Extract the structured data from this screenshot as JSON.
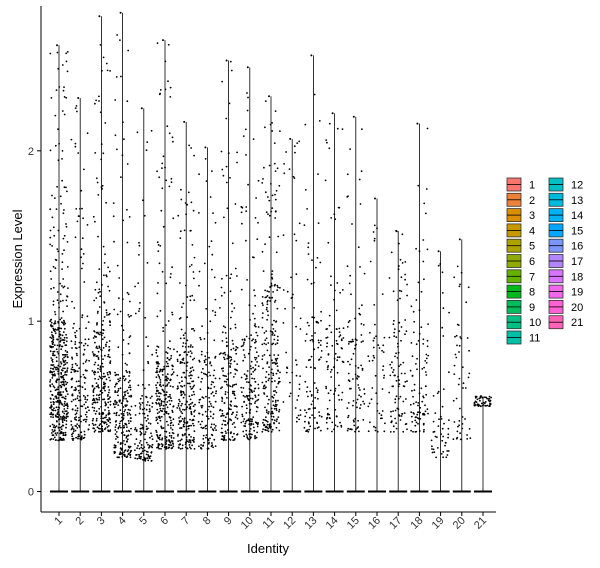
{
  "chart_data": {
    "type": "violin",
    "title": "",
    "xlabel": "Identity",
    "ylabel": "Expression Level",
    "categories": [
      "1",
      "2",
      "3",
      "4",
      "5",
      "6",
      "7",
      "8",
      "9",
      "10",
      "11",
      "12",
      "13",
      "14",
      "15",
      "16",
      "17",
      "18",
      "19",
      "20",
      "21"
    ],
    "ylim": [
      -0.12,
      2.85
    ],
    "yticks": [
      0,
      1,
      2
    ],
    "series_max": [
      2.62,
      2.31,
      2.79,
      2.81,
      2.25,
      2.65,
      2.17,
      2.02,
      2.53,
      2.49,
      2.32,
      2.07,
      2.56,
      2.22,
      2.2,
      1.72,
      1.53,
      2.16,
      1.41,
      1.48,
      0.56
    ],
    "typical_expression_range": [
      [
        0.3,
        1.0
      ],
      [
        0.3,
        0.9
      ],
      [
        0.35,
        1.0
      ],
      [
        0.2,
        0.7
      ],
      [
        0.18,
        0.55
      ],
      [
        0.25,
        0.8
      ],
      [
        0.25,
        0.85
      ],
      [
        0.25,
        0.8
      ],
      [
        0.3,
        0.9
      ],
      [
        0.3,
        0.9
      ],
      [
        0.35,
        1.2
      ],
      [
        0.4,
        1.5
      ],
      [
        0.35,
        1.0
      ],
      [
        0.35,
        1.0
      ],
      [
        0.35,
        1.0
      ],
      [
        0.35,
        0.9
      ],
      [
        0.35,
        1.0
      ],
      [
        0.35,
        0.9
      ],
      [
        0.2,
        0.5
      ],
      [
        0.3,
        0.9
      ],
      [
        0.5,
        0.55
      ]
    ],
    "relative_point_density": [
      10,
      4,
      6,
      5,
      3,
      6,
      5,
      3,
      4,
      4,
      5,
      1,
      2,
      2,
      2,
      1,
      2,
      2,
      1,
      1,
      1
    ],
    "legend": {
      "position": "right",
      "entries": [
        {
          "label": "1",
          "color": "#F8766D"
        },
        {
          "label": "2",
          "color": "#EC8239"
        },
        {
          "label": "3",
          "color": "#DB8E00"
        },
        {
          "label": "4",
          "color": "#C79800"
        },
        {
          "label": "5",
          "color": "#AEA200"
        },
        {
          "label": "6",
          "color": "#8FAA00"
        },
        {
          "label": "7",
          "color": "#64B200"
        },
        {
          "label": "8",
          "color": "#00B81B"
        },
        {
          "label": "9",
          "color": "#00BD5C"
        },
        {
          "label": "10",
          "color": "#00C085"
        },
        {
          "label": "11",
          "color": "#00C1A7"
        },
        {
          "label": "12",
          "color": "#00BFC4"
        },
        {
          "label": "13",
          "color": "#00BADE"
        },
        {
          "label": "14",
          "color": "#00B2F3"
        },
        {
          "label": "15",
          "color": "#00A6FF"
        },
        {
          "label": "16",
          "color": "#7C96FF"
        },
        {
          "label": "17",
          "color": "#B385FF"
        },
        {
          "label": "18",
          "color": "#D874FD"
        },
        {
          "label": "19",
          "color": "#EF67EB"
        },
        {
          "label": "20",
          "color": "#FD61D3"
        },
        {
          "label": "21",
          "color": "#FF63B6"
        }
      ]
    },
    "grid": false,
    "points": "jittered cells (black), zero values collapsed on baseline"
  }
}
